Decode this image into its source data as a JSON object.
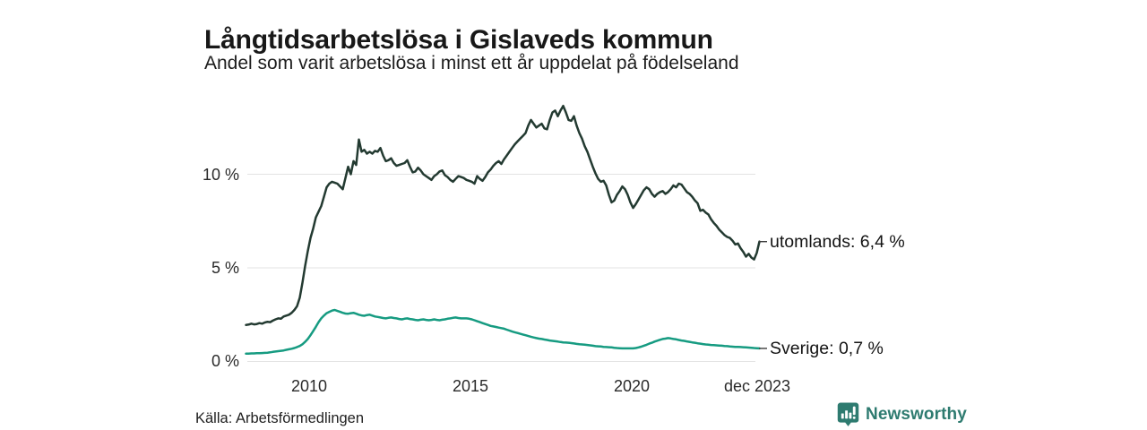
{
  "header": {
    "title": "Långtidsarbetslösa i Gislaveds kommun",
    "subtitle": "Andel som varit arbetslösa i minst ett år uppdelat på födelseland"
  },
  "chart_data": {
    "type": "line",
    "title": "Långtidsarbetslösa i Gislaveds kommun",
    "subtitle": "Andel som varit arbetslösa i minst ett år uppdelat på födelseland",
    "unit": "%",
    "grid": true,
    "gridline_color": "#e3e3e3",
    "leader_tick_color": "#3d3d3d",
    "x_start_year": 2008,
    "x_step_months": 1,
    "x_end_label": "dec 2023",
    "x_axis": {
      "range_years": [
        2008,
        2024
      ],
      "ticks": [
        {
          "year": 2010,
          "label": "2010"
        },
        {
          "year": 2015,
          "label": "2015"
        },
        {
          "year": 2020,
          "label": "2020"
        },
        {
          "year": 2023.92,
          "label": "dec 2023"
        }
      ]
    },
    "y_axis": {
      "range": [
        0,
        14.5
      ],
      "ticks": [
        {
          "value": 0,
          "label": "0 %"
        },
        {
          "value": 5,
          "label": "5 %"
        },
        {
          "value": 10,
          "label": "10 %"
        }
      ]
    },
    "series": [
      {
        "name": "utomlands",
        "end_label": "utomlands: 6,4 %",
        "current_value": "6,4 %",
        "color": "#233a31",
        "values": [
          1.95,
          1.97,
          2.02,
          1.98,
          2.0,
          2.05,
          2.02,
          2.08,
          2.12,
          2.1,
          2.18,
          2.25,
          2.3,
          2.28,
          2.4,
          2.45,
          2.5,
          2.6,
          2.75,
          2.95,
          3.4,
          4.2,
          5.1,
          5.9,
          6.6,
          7.1,
          7.7,
          8.0,
          8.3,
          8.8,
          9.3,
          9.5,
          9.6,
          9.55,
          9.5,
          9.35,
          9.2,
          9.8,
          10.4,
          10.0,
          10.7,
          10.5,
          11.85,
          11.2,
          11.3,
          11.1,
          11.2,
          11.1,
          11.25,
          11.2,
          11.4,
          11.0,
          10.7,
          10.75,
          10.85,
          10.6,
          10.45,
          10.5,
          10.55,
          10.6,
          10.75,
          10.4,
          10.1,
          10.15,
          10.35,
          10.2,
          10.0,
          9.9,
          9.8,
          9.7,
          9.9,
          10.0,
          10.15,
          10.2,
          9.95,
          9.85,
          9.7,
          9.6,
          9.75,
          9.9,
          9.85,
          9.8,
          9.7,
          9.65,
          9.6,
          9.5,
          9.9,
          9.75,
          9.65,
          9.85,
          10.1,
          10.25,
          10.45,
          10.6,
          10.7,
          10.55,
          10.8,
          11.0,
          11.2,
          11.4,
          11.6,
          11.75,
          11.9,
          12.05,
          12.2,
          12.6,
          12.9,
          12.7,
          12.5,
          12.6,
          12.7,
          12.45,
          12.4,
          12.9,
          13.3,
          13.4,
          13.1,
          13.4,
          13.65,
          13.3,
          12.9,
          12.85,
          13.1,
          12.6,
          12.2,
          11.9,
          11.5,
          11.2,
          10.8,
          10.4,
          10.05,
          9.75,
          9.6,
          9.65,
          9.4,
          8.9,
          8.5,
          8.6,
          8.9,
          9.1,
          9.35,
          9.2,
          8.9,
          8.5,
          8.2,
          8.4,
          8.65,
          8.9,
          9.15,
          9.3,
          9.2,
          8.95,
          8.8,
          8.95,
          9.05,
          9.1,
          8.95,
          9.05,
          9.2,
          9.4,
          9.3,
          9.5,
          9.45,
          9.25,
          9.05,
          8.95,
          8.8,
          8.6,
          8.45,
          8.05,
          8.1,
          7.95,
          7.85,
          7.6,
          7.4,
          7.25,
          7.05,
          6.9,
          6.75,
          6.65,
          6.6,
          6.45,
          6.25,
          6.3,
          6.05,
          5.85,
          5.6,
          5.75,
          5.55,
          5.45,
          5.8,
          6.4
        ]
      },
      {
        "name": "Sverige",
        "end_label": "Sverige: 0,7 %",
        "current_value": "0,7 %",
        "color": "#169b81",
        "values": [
          0.42,
          0.42,
          0.43,
          0.43,
          0.44,
          0.44,
          0.45,
          0.46,
          0.47,
          0.49,
          0.51,
          0.53,
          0.55,
          0.57,
          0.59,
          0.62,
          0.65,
          0.68,
          0.72,
          0.77,
          0.83,
          0.92,
          1.05,
          1.2,
          1.4,
          1.62,
          1.85,
          2.1,
          2.3,
          2.45,
          2.58,
          2.65,
          2.72,
          2.75,
          2.7,
          2.65,
          2.6,
          2.56,
          2.55,
          2.58,
          2.6,
          2.55,
          2.5,
          2.46,
          2.44,
          2.48,
          2.5,
          2.45,
          2.4,
          2.38,
          2.35,
          2.32,
          2.3,
          2.33,
          2.35,
          2.32,
          2.3,
          2.27,
          2.25,
          2.28,
          2.3,
          2.27,
          2.25,
          2.22,
          2.2,
          2.23,
          2.25,
          2.22,
          2.2,
          2.22,
          2.25,
          2.22,
          2.2,
          2.23,
          2.25,
          2.28,
          2.3,
          2.33,
          2.35,
          2.32,
          2.3,
          2.3,
          2.3,
          2.28,
          2.25,
          2.2,
          2.15,
          2.1,
          2.05,
          2.0,
          1.95,
          1.9,
          1.87,
          1.84,
          1.81,
          1.78,
          1.75,
          1.7,
          1.65,
          1.6,
          1.56,
          1.52,
          1.48,
          1.44,
          1.4,
          1.36,
          1.32,
          1.28,
          1.25,
          1.22,
          1.2,
          1.17,
          1.15,
          1.12,
          1.1,
          1.08,
          1.06,
          1.04,
          1.02,
          1.01,
          1.0,
          0.98,
          0.96,
          0.94,
          0.92,
          0.91,
          0.9,
          0.88,
          0.86,
          0.84,
          0.82,
          0.81,
          0.8,
          0.78,
          0.77,
          0.76,
          0.75,
          0.73,
          0.72,
          0.71,
          0.7,
          0.7,
          0.7,
          0.7,
          0.7,
          0.72,
          0.75,
          0.79,
          0.84,
          0.89,
          0.95,
          1.0,
          1.06,
          1.11,
          1.16,
          1.2,
          1.22,
          1.25,
          1.23,
          1.2,
          1.18,
          1.15,
          1.12,
          1.1,
          1.07,
          1.05,
          1.02,
          1.0,
          0.97,
          0.95,
          0.93,
          0.91,
          0.9,
          0.88,
          0.87,
          0.86,
          0.85,
          0.84,
          0.83,
          0.82,
          0.8,
          0.79,
          0.78,
          0.78,
          0.77,
          0.76,
          0.75,
          0.74,
          0.73,
          0.72,
          0.71,
          0.7
        ]
      }
    ]
  },
  "footer": {
    "source": "Källa: Arbetsförmedlingen",
    "brand": "Newsworthy"
  },
  "colors": {
    "background": "#ffffff",
    "title_text": "#181818",
    "axis_text": "#2a2a2a",
    "brand_teal": "#2e7b70",
    "series_utomlands": "#233a31",
    "series_sverige": "#169b81"
  }
}
